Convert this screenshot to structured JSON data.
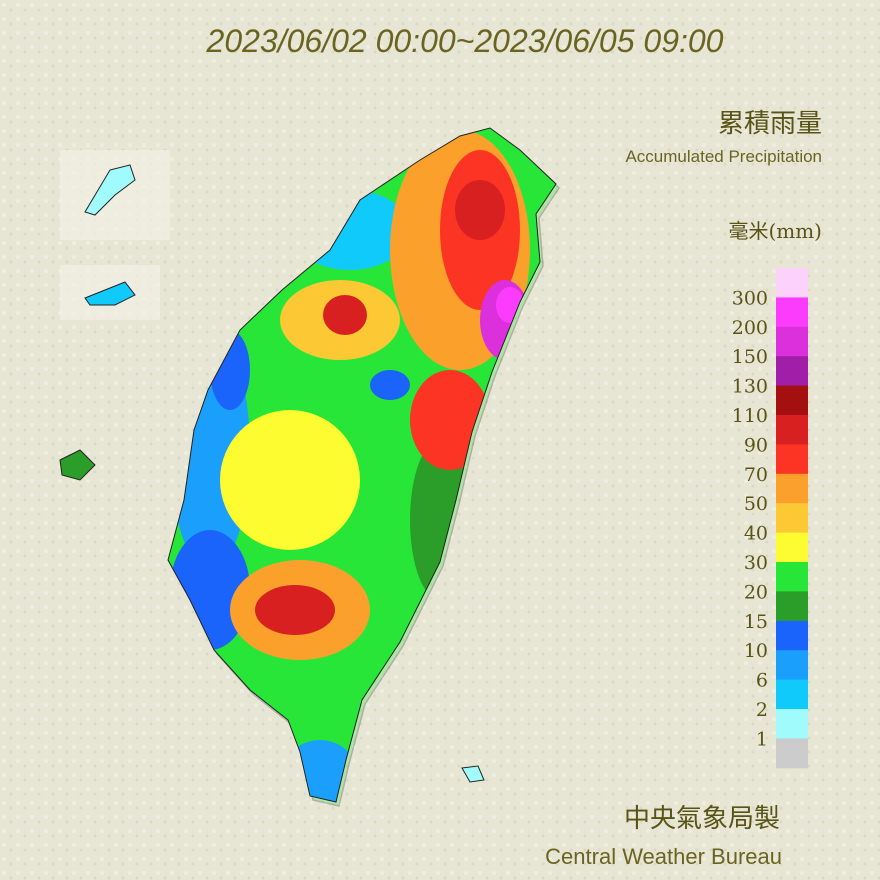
{
  "header": {
    "title": "2023/06/02 00:00~2023/06/05 09:00"
  },
  "legend": {
    "title": "累積雨量",
    "subtitle": "Accumulated Precipitation",
    "unit": "毫米(mm)",
    "labels": [
      300,
      200,
      150,
      130,
      110,
      90,
      70,
      50,
      40,
      30,
      20,
      15,
      10,
      6,
      2,
      1
    ],
    "colors": [
      "#fcd2fc",
      "#fc3cfc",
      "#dc30dc",
      "#a01ea8",
      "#a41010",
      "#d82020",
      "#fc3424",
      "#fca02c",
      "#fcc834",
      "#fcfc30",
      "#28e638",
      "#2a9e28",
      "#1a64fc",
      "#1aa0fc",
      "#10cafc",
      "#a0fcfc",
      "#cccccc"
    ]
  },
  "footer": {
    "credit": "中央氣象局製",
    "credit_en": "Central Weather Bureau"
  }
}
